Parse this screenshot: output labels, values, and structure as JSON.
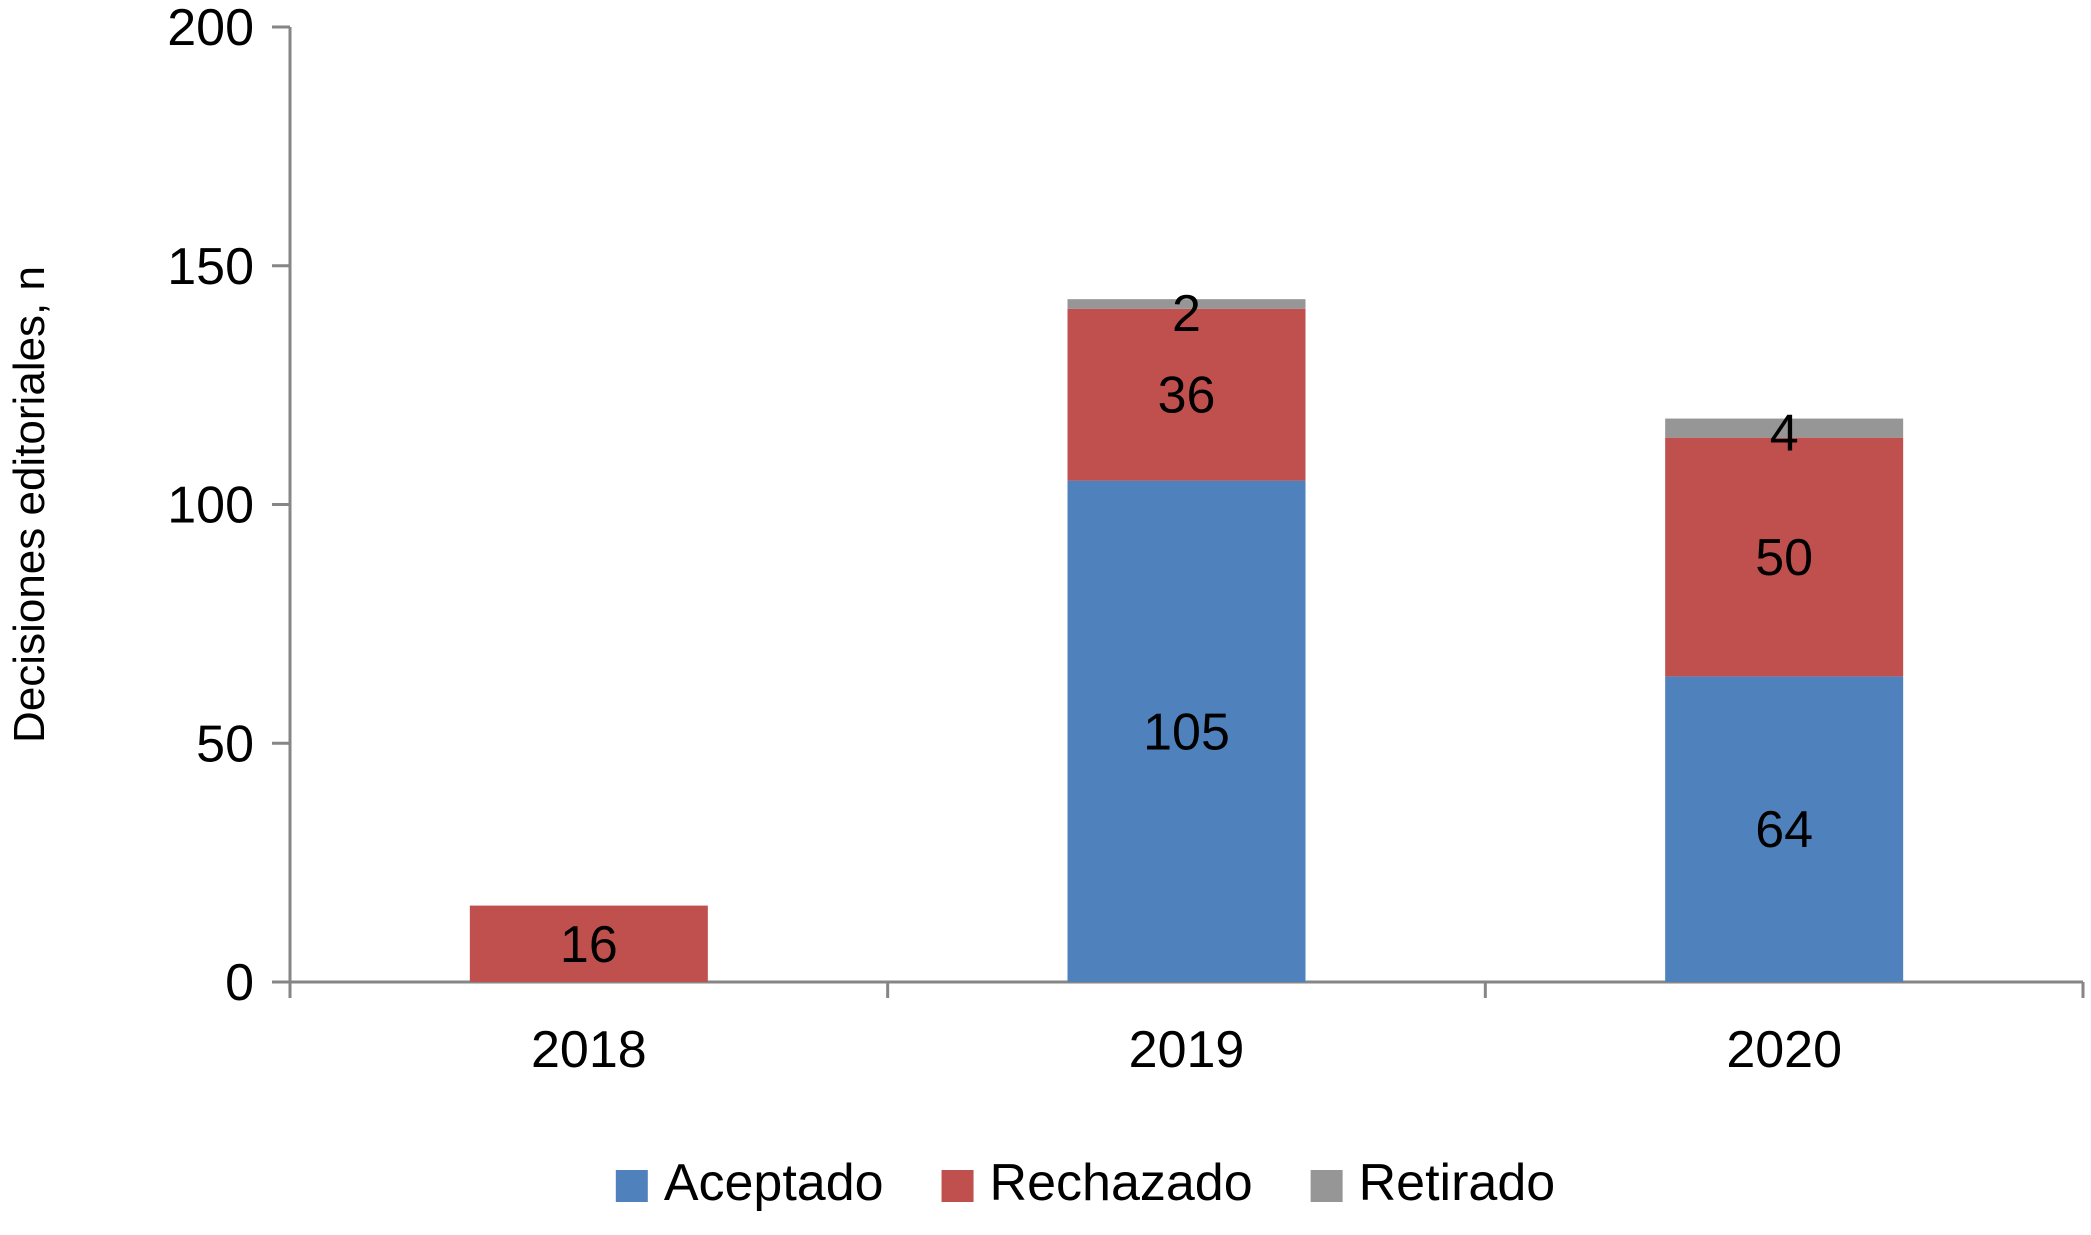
{
  "chart_data": {
    "type": "bar",
    "stacked": true,
    "title": "",
    "xlabel": "",
    "ylabel": "Decisiones editoriales, n",
    "ylim": [
      0,
      200
    ],
    "yticks": [
      0,
      50,
      100,
      150,
      200
    ],
    "categories": [
      "2018",
      "2019",
      "2020"
    ],
    "series": [
      {
        "name": "Aceptado",
        "color": "#4f81bd",
        "values": [
          0,
          105,
          64
        ]
      },
      {
        "name": "Rechazado",
        "color": "#c0504d",
        "values": [
          16,
          36,
          50
        ]
      },
      {
        "name": "Retirado",
        "color": "#969696",
        "values": [
          0,
          2,
          4
        ]
      }
    ],
    "data_labels": [
      {
        "category": "2018",
        "series": "Rechazado",
        "text": "16"
      },
      {
        "category": "2019",
        "series": "Aceptado",
        "text": "105"
      },
      {
        "category": "2019",
        "series": "Rechazado",
        "text": "36"
      },
      {
        "category": "2019",
        "series": "Retirado",
        "text": "2"
      },
      {
        "category": "2020",
        "series": "Aceptado",
        "text": "64"
      },
      {
        "category": "2020",
        "series": "Rechazado",
        "text": "50"
      },
      {
        "category": "2020",
        "series": "Retirado",
        "text": "4"
      }
    ],
    "grid": false,
    "legend": "bottom",
    "axis_color": "#868686"
  }
}
